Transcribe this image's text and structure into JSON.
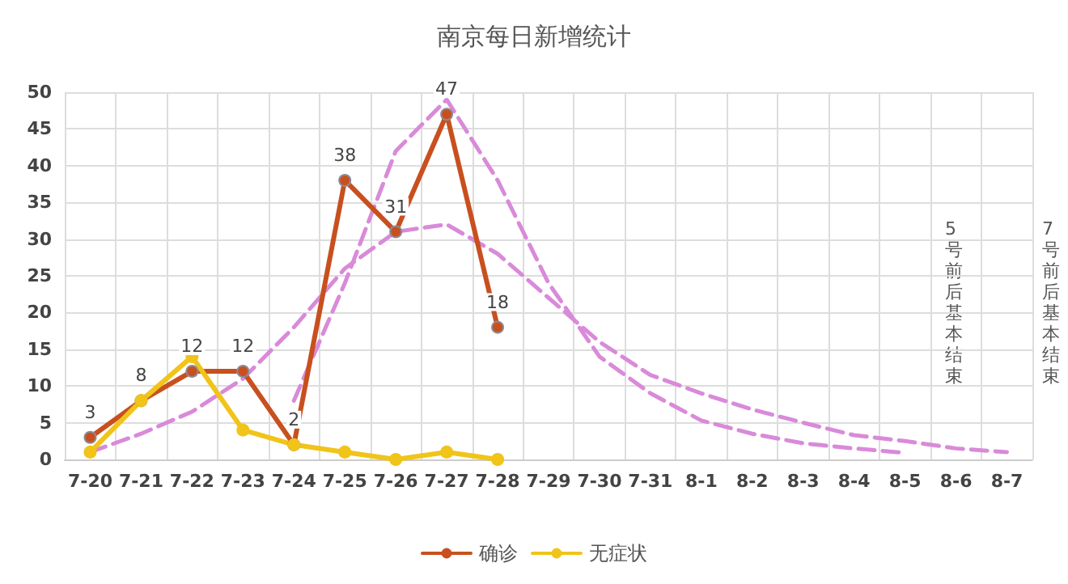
{
  "chart_data": {
    "type": "line",
    "title": "南京每日新增统计",
    "categories": [
      "7-20",
      "7-21",
      "7-22",
      "7-23",
      "7-24",
      "7-25",
      "7-26",
      "7-27",
      "7-28",
      "7-29",
      "7-30",
      "7-31",
      "8-1",
      "8-2",
      "8-3",
      "8-4",
      "8-5",
      "8-6",
      "8-7"
    ],
    "series": [
      {
        "name": "确诊",
        "color": "#c8501e",
        "marker": "circle",
        "values": [
          3,
          8,
          12,
          12,
          2,
          38,
          31,
          47,
          18,
          null,
          null,
          null,
          null,
          null,
          null,
          null,
          null,
          null,
          null
        ],
        "value_labels": [
          "3",
          "8",
          "12",
          "12",
          "2",
          "38",
          "31",
          "47",
          "18",
          null,
          null,
          null,
          null,
          null,
          null,
          null,
          null,
          null,
          null
        ]
      },
      {
        "name": "无症状",
        "color": "#f0c419",
        "marker": "circle",
        "values": [
          1,
          8,
          14,
          4,
          2,
          1,
          0,
          1,
          0,
          null,
          null,
          null,
          null,
          null,
          null,
          null,
          null,
          null,
          null
        ]
      },
      {
        "color": "#d98ad9",
        "line_style": "dashed",
        "marker": "none",
        "values": [
          null,
          null,
          null,
          null,
          8,
          24,
          42,
          49,
          38,
          24,
          14,
          9,
          5.3,
          3.5,
          2.2,
          1.5,
          0.9,
          null,
          null
        ]
      },
      {
        "color": "#d98ad9",
        "line_style": "dashed",
        "marker": "none",
        "values": [
          1,
          3.5,
          6.5,
          11,
          18,
          26,
          31,
          32,
          28,
          22,
          16,
          11.5,
          9,
          6.8,
          5,
          3.3,
          2.5,
          1.5,
          1
        ]
      }
    ],
    "ylim": [
      0,
      50
    ],
    "yticks": [
      0,
      5,
      10,
      15,
      20,
      25,
      30,
      35,
      40,
      45,
      50
    ],
    "grid": true,
    "legend": "bottom",
    "annotations": [
      "5号前后基本结束",
      "7号前后基本结束"
    ]
  }
}
